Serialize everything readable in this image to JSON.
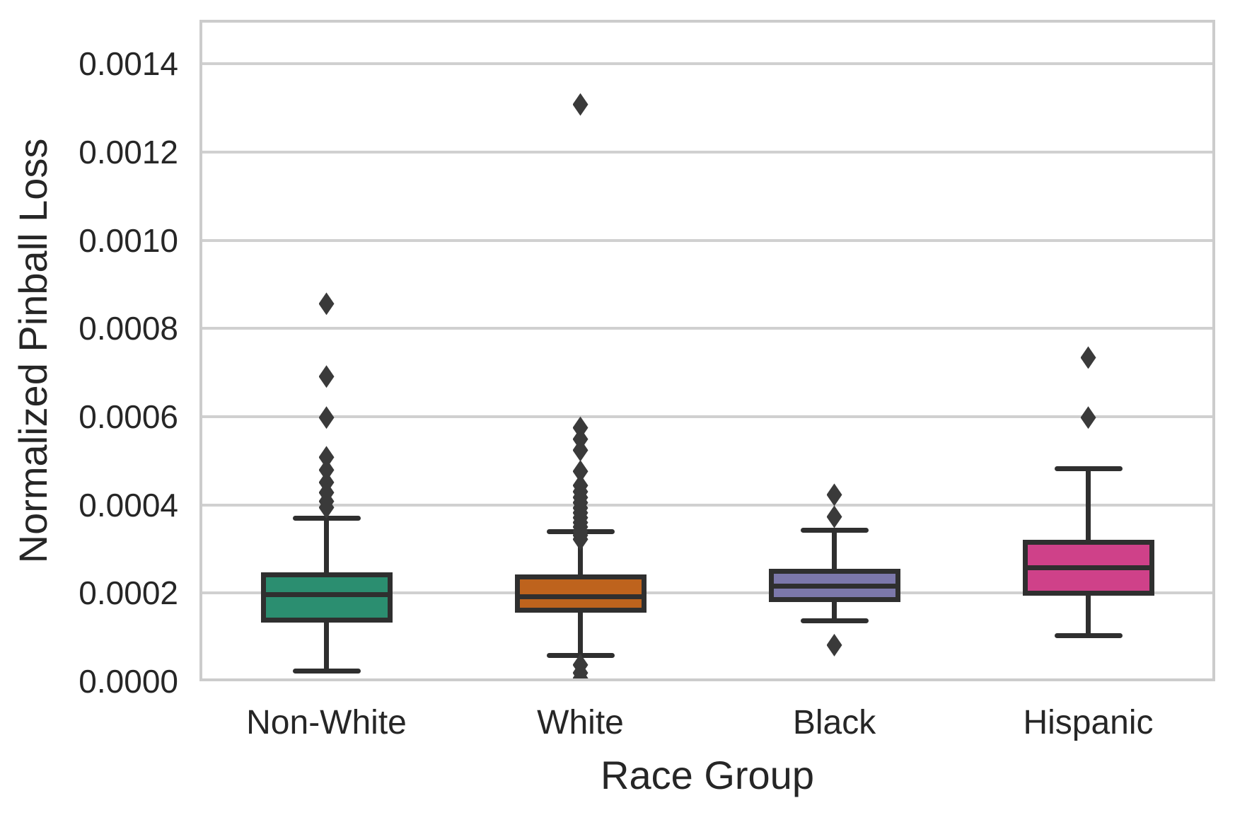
{
  "figure": {
    "background": "#ffffff",
    "grid_color": "#d0d0d0",
    "spine_color": "#cccccc",
    "text_color": "#262626",
    "box_edge_color": "#2f2f2f"
  },
  "chart_data": {
    "type": "box",
    "title": "",
    "xlabel": "Race Group",
    "ylabel": "Normalized Pinball Loss",
    "ylim": [
      0,
      0.0015
    ],
    "grid": "horizontal",
    "ytick_values": [
      0.0,
      0.0002,
      0.0004,
      0.0006,
      0.0008,
      0.001,
      0.0012,
      0.0014
    ],
    "ytick_labels": [
      "0.0000",
      "0.0002",
      "0.0004",
      "0.0006",
      "0.0008",
      "0.0010",
      "0.0012",
      "0.0014"
    ],
    "categories": [
      "Non-White",
      "White",
      "Black",
      "Hispanic"
    ],
    "boxes": [
      {
        "category": "Non-White",
        "fill_color": "#2b8e70",
        "whisker_low": 2.4e-05,
        "q1": 0.000138,
        "median": 0.000196,
        "q3": 0.000241,
        "whisker_high": 0.00037,
        "outliers": [
          0.000856,
          0.000691,
          0.000598,
          0.000508,
          0.000479,
          0.000451,
          0.000428,
          0.000408,
          0.000394
        ]
      },
      {
        "category": "White",
        "fill_color": "#be631d",
        "whisker_low": 5.8e-05,
        "q1": 0.000161,
        "median": 0.000192,
        "q3": 0.000236,
        "whisker_high": 0.00034,
        "outliers": [
          0.001308,
          0.000575,
          0.000549,
          0.000524,
          0.000476,
          0.000444,
          0.00043,
          0.000417,
          0.000405,
          0.000393,
          0.000382,
          0.000371,
          0.00036,
          0.00035,
          0.00034,
          0.000331,
          0.000322,
          3.7e-05,
          1.9e-05,
          7e-06
        ]
      },
      {
        "category": "Black",
        "fill_color": "#7c78ab",
        "whisker_low": 0.000137,
        "q1": 0.000186,
        "median": 0.000215,
        "q3": 0.000249,
        "whisker_high": 0.000342,
        "outliers": [
          0.000423,
          0.000373,
          8.2e-05
        ]
      },
      {
        "category": "Hispanic",
        "fill_color": "#cf4189",
        "whisker_low": 0.000104,
        "q1": 0.000199,
        "median": 0.000257,
        "q3": 0.000315,
        "whisker_high": 0.000482,
        "outliers": [
          0.000734,
          0.000598
        ]
      }
    ]
  }
}
